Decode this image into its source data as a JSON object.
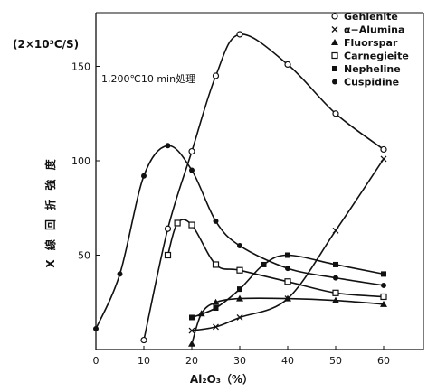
{
  "chart_data": {
    "type": "line",
    "title": "",
    "xlabel": "Al₂O₃（%）",
    "ylabel": "X 線 回 折 強 度",
    "yunit": "(2×10³C/S)",
    "annotation": "1,200℃10 min処理",
    "xlim": [
      0,
      63
    ],
    "ylim": [
      0,
      170
    ],
    "xticks": [
      0,
      10,
      20,
      30,
      40,
      50,
      60
    ],
    "yticks": [
      50,
      100,
      150
    ],
    "legend_position": "top-right",
    "series": [
      {
        "name": "Gehlenite",
        "marker": "circle-open",
        "x": [
          10,
          15,
          20,
          25,
          30,
          40,
          50,
          60
        ],
        "y": [
          5,
          64,
          105,
          145,
          167,
          151,
          125,
          106
        ]
      },
      {
        "name": "α−Alumina",
        "marker": "x",
        "x": [
          20,
          25,
          30,
          40,
          50,
          60
        ],
        "y": [
          10,
          12,
          17,
          27,
          63,
          101
        ]
      },
      {
        "name": "Fluorspar",
        "marker": "triangle-filled",
        "x": [
          20,
          22,
          25,
          30,
          40,
          50,
          60
        ],
        "y": [
          3,
          19,
          25,
          27,
          27,
          26,
          24
        ]
      },
      {
        "name": "Carnegieite",
        "marker": "square-open",
        "x": [
          15,
          17,
          20,
          25,
          30,
          40,
          50,
          60
        ],
        "y": [
          50,
          67,
          66,
          45,
          42,
          36,
          30,
          28
        ]
      },
      {
        "name": "Nepheline",
        "marker": "square-filled",
        "x": [
          20,
          25,
          30,
          35,
          40,
          50,
          60
        ],
        "y": [
          17,
          22,
          32,
          45,
          50,
          45,
          40
        ]
      },
      {
        "name": "Cuspidine",
        "marker": "circle-filled",
        "x": [
          0,
          5,
          10,
          15,
          20,
          25,
          30,
          40,
          50,
          60
        ],
        "y": [
          11,
          40,
          92,
          108,
          95,
          68,
          55,
          43,
          38,
          34
        ]
      }
    ]
  }
}
